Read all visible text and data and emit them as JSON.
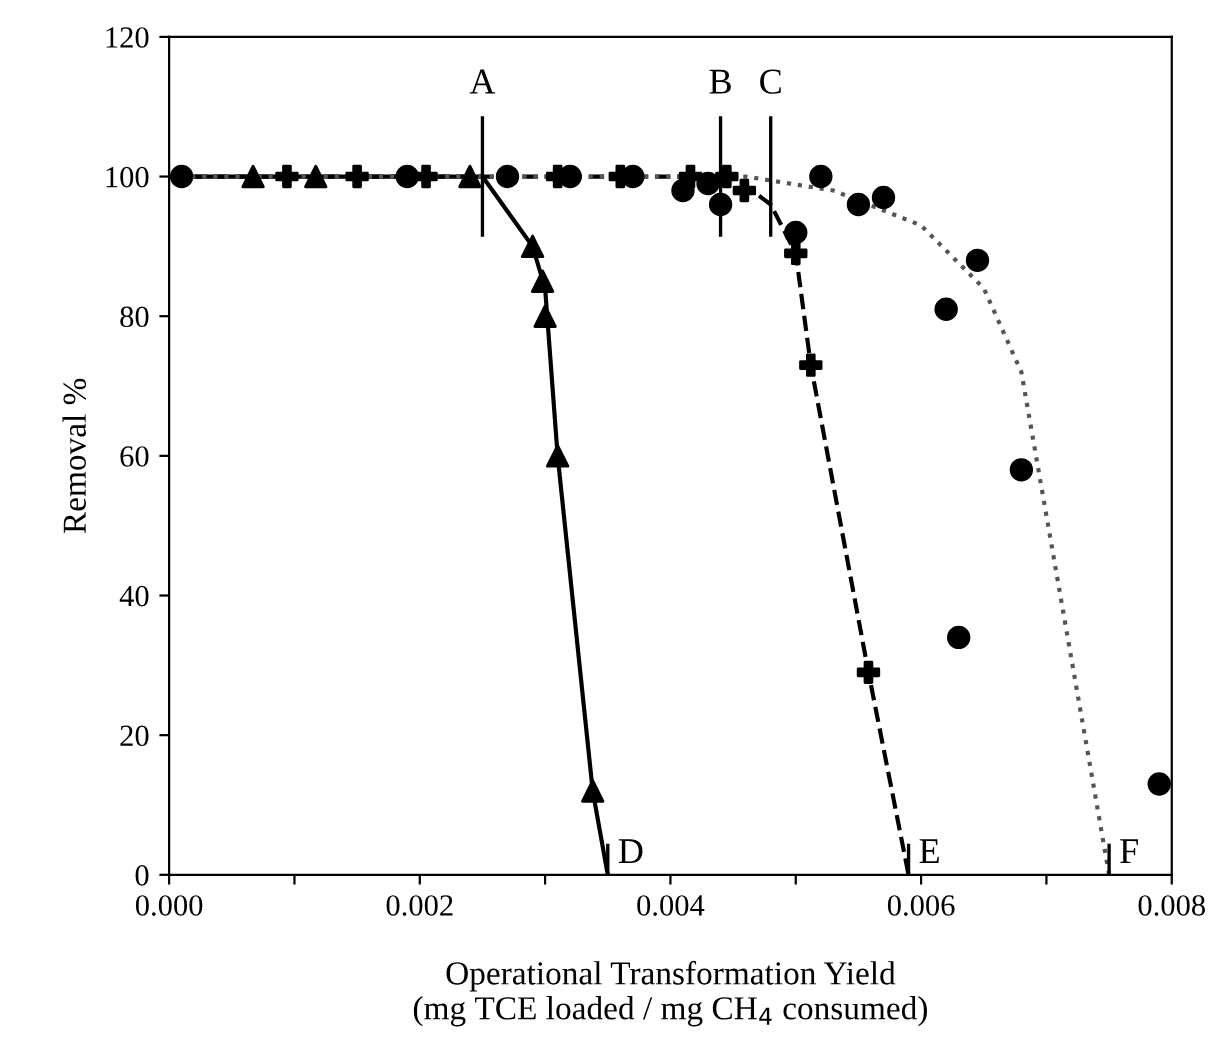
{
  "chart_data": {
    "type": "scatter",
    "xlabel": "Operational Transformation Yield\n(mg TCE loaded / mg CH$_{4}$ consumed)",
    "ylabel": "Removal %",
    "xlim": [
      0,
      0.008
    ],
    "ylim": [
      0,
      120
    ],
    "xticks": [
      {
        "value": 0,
        "label": "0.000"
      },
      {
        "value": 0.001,
        "label": null
      },
      {
        "value": 0.002,
        "label": "0.002"
      },
      {
        "value": 0.003,
        "label": null
      },
      {
        "value": 0.004,
        "label": "0.004"
      },
      {
        "value": 0.005,
        "label": null
      },
      {
        "value": 0.006,
        "label": "0.006"
      },
      {
        "value": 0.007,
        "label": null
      },
      {
        "value": 0.008,
        "label": "0.008"
      }
    ],
    "yticks": [
      0,
      20,
      40,
      60,
      80,
      100,
      120
    ],
    "grid": false,
    "legend": false,
    "series": [
      {
        "type": "line",
        "color": "#000000",
        "line_style": "solid",
        "marker": "none",
        "x": [
          0,
          0.0025,
          0.0029,
          0.003,
          0.0031,
          0.00338,
          0.0035
        ],
        "values": [
          100,
          100,
          90,
          84,
          60,
          12,
          0
        ]
      },
      {
        "type": "line",
        "color": "#000000",
        "line_style": "dashed",
        "marker": "none",
        "x": [
          0,
          0.0045,
          0.0048,
          0.005,
          0.00512,
          0.00558,
          0.0059
        ],
        "values": [
          100,
          100,
          96,
          89,
          73,
          29,
          0
        ]
      },
      {
        "type": "line",
        "color": "#555555",
        "line_style": "dotted",
        "marker": "none",
        "x": [
          0,
          0.0046,
          0.0053,
          0.006,
          0.0065,
          0.0068,
          0.0075
        ],
        "values": [
          100,
          100,
          98,
          93,
          84,
          72,
          0
        ]
      },
      {
        "color": "#000000",
        "marker": "triangle",
        "x": [
          0.00067,
          0.00117,
          0.0024,
          0.0029,
          0.00298,
          0.003,
          0.0031,
          0.00338
        ],
        "values": [
          100,
          100,
          100,
          90,
          85,
          80,
          60,
          12
        ]
      },
      {
        "color": "#000000",
        "marker": "cross",
        "x": [
          0.00094,
          0.0015,
          0.00205,
          0.0031,
          0.0036,
          0.00416,
          0.00445,
          0.00459,
          0.005,
          0.00512,
          0.00558
        ],
        "values": [
          100,
          100,
          100,
          100,
          100,
          100,
          100,
          98,
          89,
          73,
          29
        ]
      },
      {
        "color": "#000000",
        "marker": "circle",
        "x": [
          0.0001,
          0.0019,
          0.0027,
          0.0032,
          0.0037,
          0.0041,
          0.0043,
          0.0044,
          0.005,
          0.0052,
          0.0055,
          0.0057,
          0.0062,
          0.00645,
          0.0063,
          0.0068,
          0.0079
        ],
        "values": [
          100,
          100,
          100,
          100,
          100,
          98,
          99,
          96,
          92,
          100,
          96,
          97,
          81,
          88,
          34,
          58,
          13
        ]
      }
    ],
    "annotations": [
      {
        "text": "A",
        "x": 0.0025,
        "y": 100
      },
      {
        "text": "B",
        "x": 0.0044,
        "y": 100
      },
      {
        "text": "C",
        "x": 0.0048,
        "y": 100
      },
      {
        "text": "D",
        "x": 0.0035,
        "y": 0
      },
      {
        "text": "E",
        "x": 0.0059,
        "y": 0
      },
      {
        "text": "F",
        "x": 0.0075,
        "y": 0
      }
    ]
  }
}
